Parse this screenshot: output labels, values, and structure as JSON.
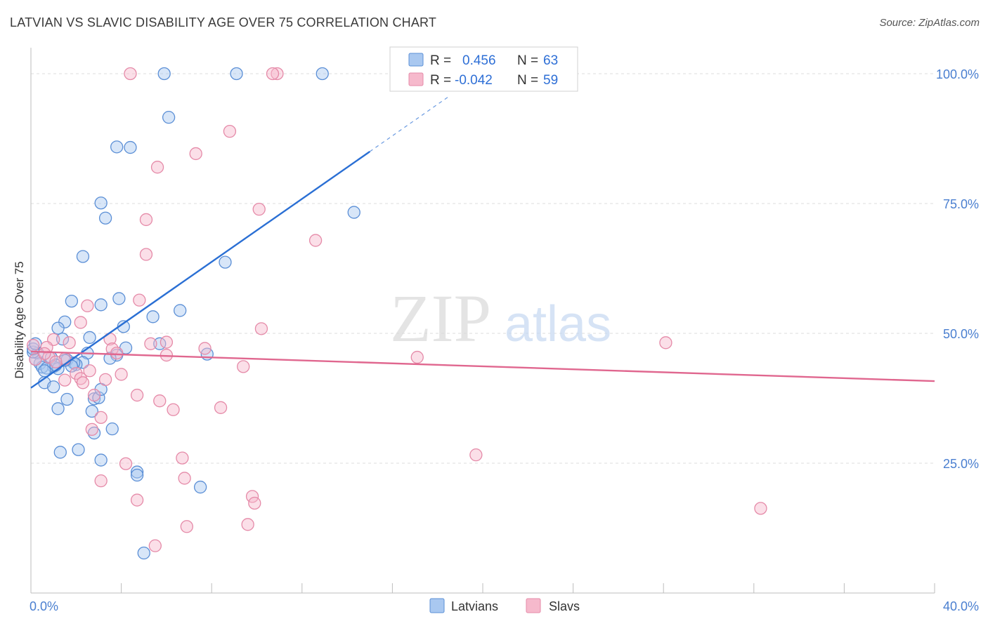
{
  "title": "LATVIAN VS SLAVIC DISABILITY AGE OVER 75 CORRELATION CHART",
  "source": "Source: ZipAtlas.com",
  "watermark": {
    "zip": "ZIP",
    "atlas": "atlas"
  },
  "colors": {
    "latvian_fill": "#a9c8f0",
    "latvian_stroke": "#5b8fd6",
    "latvian_line": "#2a6fd4",
    "slav_fill": "#f6b9cc",
    "slav_stroke": "#e58aa8",
    "slav_line": "#e0678f",
    "grid": "#dddddd",
    "tick_text": "#4a7fd0"
  },
  "legend": {
    "latvians": {
      "r_label": "R =",
      "r_value": "0.456",
      "n_label": "N =",
      "n_value": "63"
    },
    "slavs": {
      "r_label": "R =",
      "r_value": "-0.042",
      "n_label": "N =",
      "n_value": "59"
    }
  },
  "chart_data": {
    "type": "scatter",
    "title": "LATVIAN VS SLAVIC DISABILITY AGE OVER 75 CORRELATION CHART",
    "xlabel": "",
    "ylabel": "Disability Age Over 75",
    "xlim": [
      0,
      40
    ],
    "ylim": [
      0,
      105
    ],
    "x_tick_labels": [
      {
        "value": 0,
        "label": "0.0%"
      },
      {
        "value": 40,
        "label": "40.0%"
      }
    ],
    "y_tick_labels": [
      {
        "value": 25,
        "label": "25.0%"
      },
      {
        "value": 50,
        "label": "50.0%"
      },
      {
        "value": 75,
        "label": "75.0%"
      },
      {
        "value": 100,
        "label": "100.0%"
      }
    ],
    "series": [
      {
        "name": "Latvians",
        "r": 0.456,
        "n": 63,
        "trend": {
          "x0": 0,
          "y0": 39.5,
          "x1": 15,
          "y1": 85,
          "dash_to_x": 18.5
        },
        "points": [
          [
            5.9,
            100
          ],
          [
            9.1,
            100
          ],
          [
            12.9,
            100
          ],
          [
            6.1,
            91.6
          ],
          [
            3.8,
            85.9
          ],
          [
            4.4,
            85.8
          ],
          [
            3.1,
            75.1
          ],
          [
            3.3,
            72.2
          ],
          [
            14.3,
            73.3
          ],
          [
            2.3,
            64.8
          ],
          [
            8.6,
            63.7
          ],
          [
            1.8,
            56.2
          ],
          [
            3.1,
            55.5
          ],
          [
            3.9,
            56.7
          ],
          [
            6.6,
            54.4
          ],
          [
            5.4,
            53.2
          ],
          [
            1.5,
            52.2
          ],
          [
            1.2,
            51.0
          ],
          [
            4.1,
            51.3
          ],
          [
            2.6,
            49.2
          ],
          [
            1.4,
            48.9
          ],
          [
            4.2,
            47.2
          ],
          [
            0.3,
            46.2
          ],
          [
            2.5,
            46.2
          ],
          [
            0.9,
            45.3
          ],
          [
            3.8,
            45.8
          ],
          [
            7.8,
            46.0
          ],
          [
            1.6,
            44.9
          ],
          [
            2.3,
            44.4
          ],
          [
            0.4,
            44.2
          ],
          [
            2.0,
            44.0
          ],
          [
            1.9,
            44.3
          ],
          [
            1.8,
            43.7
          ],
          [
            1.0,
            43.6
          ],
          [
            0.5,
            43.5
          ],
          [
            0.7,
            43.3
          ],
          [
            1.2,
            43.2
          ],
          [
            0.6,
            42.8
          ],
          [
            0.2,
            45.0
          ],
          [
            0.1,
            46.4
          ],
          [
            5.7,
            48.0
          ],
          [
            0.6,
            40.5
          ],
          [
            1.0,
            39.7
          ],
          [
            2.8,
            37.4
          ],
          [
            3.0,
            37.6
          ],
          [
            3.1,
            39.2
          ],
          [
            1.6,
            37.3
          ],
          [
            1.2,
            35.5
          ],
          [
            2.7,
            35.0
          ],
          [
            2.8,
            30.8
          ],
          [
            3.6,
            31.6
          ],
          [
            2.1,
            27.6
          ],
          [
            1.3,
            27.1
          ],
          [
            3.1,
            25.6
          ],
          [
            4.7,
            23.3
          ],
          [
            4.7,
            22.7
          ],
          [
            7.5,
            20.4
          ],
          [
            5.0,
            7.7
          ],
          [
            0.1,
            47.0
          ],
          [
            0.2,
            48.0
          ],
          [
            1.5,
            44.8
          ],
          [
            1.1,
            43.9
          ],
          [
            3.5,
            45.2
          ]
        ]
      },
      {
        "name": "Slavs",
        "r": -0.042,
        "n": 59,
        "trend": {
          "x0": 0,
          "y0": 46.5,
          "x1": 40,
          "y1": 40.8
        },
        "points": [
          [
            4.4,
            100
          ],
          [
            10.9,
            100
          ],
          [
            10.7,
            100
          ],
          [
            8.8,
            88.9
          ],
          [
            7.3,
            84.6
          ],
          [
            5.6,
            82.0
          ],
          [
            10.1,
            73.9
          ],
          [
            5.1,
            71.9
          ],
          [
            12.6,
            67.9
          ],
          [
            5.1,
            65.2
          ],
          [
            4.8,
            56.4
          ],
          [
            2.5,
            55.3
          ],
          [
            10.2,
            50.9
          ],
          [
            2.2,
            52.1
          ],
          [
            0.1,
            47.7
          ],
          [
            3.5,
            48.9
          ],
          [
            6.0,
            48.3
          ],
          [
            5.3,
            48.0
          ],
          [
            7.7,
            47.1
          ],
          [
            3.6,
            47.0
          ],
          [
            1.0,
            48.8
          ],
          [
            1.7,
            48.2
          ],
          [
            0.7,
            47.3
          ],
          [
            0.8,
            45.4
          ],
          [
            0.2,
            45.0
          ],
          [
            1.5,
            45.1
          ],
          [
            0.6,
            46.1
          ],
          [
            3.8,
            46.2
          ],
          [
            6.0,
            45.8
          ],
          [
            17.1,
            45.4
          ],
          [
            28.1,
            48.2
          ],
          [
            9.4,
            43.6
          ],
          [
            2.0,
            42.3
          ],
          [
            4.0,
            42.1
          ],
          [
            3.3,
            41.1
          ],
          [
            1.5,
            41.0
          ],
          [
            2.2,
            41.3
          ],
          [
            2.3,
            40.5
          ],
          [
            2.8,
            38.1
          ],
          [
            4.7,
            38.1
          ],
          [
            5.7,
            37.0
          ],
          [
            6.3,
            35.3
          ],
          [
            8.4,
            35.7
          ],
          [
            3.1,
            33.8
          ],
          [
            2.7,
            31.5
          ],
          [
            6.7,
            26.0
          ],
          [
            19.7,
            26.6
          ],
          [
            4.2,
            24.9
          ],
          [
            3.1,
            21.6
          ],
          [
            6.8,
            22.1
          ],
          [
            9.8,
            18.6
          ],
          [
            9.9,
            17.3
          ],
          [
            4.7,
            17.9
          ],
          [
            32.3,
            16.3
          ],
          [
            6.9,
            12.8
          ],
          [
            9.6,
            13.2
          ],
          [
            5.5,
            9.1
          ],
          [
            1.1,
            44.5
          ],
          [
            2.6,
            42.8
          ]
        ]
      }
    ]
  },
  "bottom_legend": {
    "latvians": "Latvians",
    "slavs": "Slavs"
  }
}
